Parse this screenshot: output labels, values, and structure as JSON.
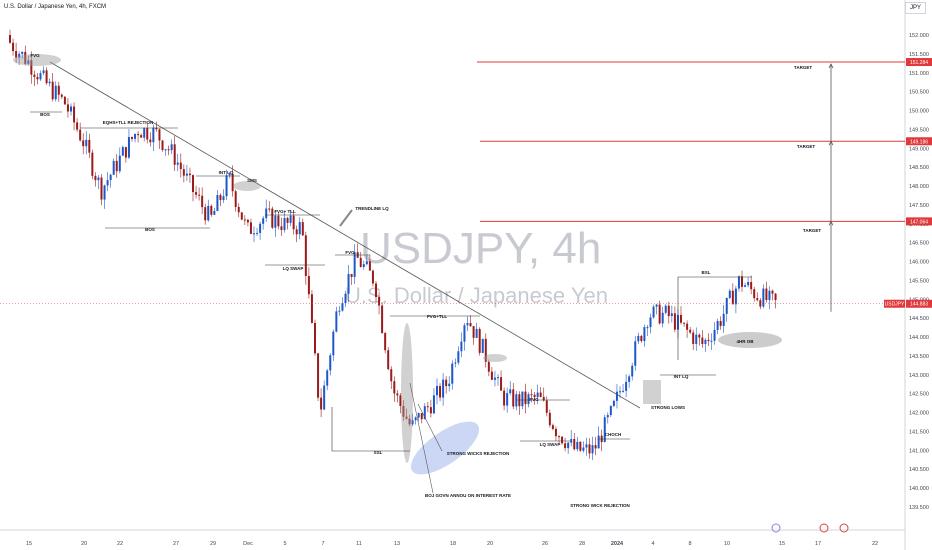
{
  "header": {
    "title": "U.S. Dollar / Japanese Yen, 4h, FXCM",
    "currency": "JPY"
  },
  "watermark": {
    "symbol_tf": "USDJPY, 4h",
    "name": "U.S. Dollar / Japanese Yen"
  },
  "price_axis": {
    "ticks": [
      "152.000",
      "151.500",
      "151.000",
      "150.500",
      "150.000",
      "149.500",
      "149.000",
      "148.500",
      "148.000",
      "147.500",
      "147.000",
      "146.500",
      "146.000",
      "145.500",
      "145.000",
      "144.500",
      "144.000",
      "143.500",
      "143.000",
      "142.500",
      "142.000",
      "141.500",
      "141.000",
      "140.500",
      "140.000",
      "139.500"
    ],
    "current_label": "USDJPY",
    "current_value": "144.883",
    "target_values": [
      "151.284",
      "149.186",
      "147.064"
    ]
  },
  "time_axis": {
    "ticks": [
      "15",
      "20",
      "22",
      "27",
      "29",
      "Dec",
      "5",
      "7",
      "11",
      "13",
      "18",
      "20",
      "26",
      "28",
      "2024",
      "4",
      "8",
      "10",
      "15",
      "17",
      "22"
    ]
  },
  "annotations": {
    "labels": [
      "FVG",
      "BOS",
      "EQHS+TLL REJECTION",
      "INT LQ",
      "SMS",
      "BOS",
      "FVG+ TLL",
      "TRENDLINE LQ",
      "LQ SWAP",
      "FVG",
      "FVG+TLL",
      "SSL",
      "STRONG WICKS REJECTION",
      "BOJ GOVN ANNOU ON INTEREST RATE",
      "FVG",
      "LQ SWAP",
      "CHOCH",
      "STRONG WICK REJECTION",
      "STRONG LOWS",
      "INT LQ",
      "BSL",
      "4HR OB",
      "TARGET",
      "TARGET",
      "TARGET"
    ]
  },
  "colors": {
    "up_candle": "#1e57c9",
    "down_candle": "#9b1b1b",
    "target_line": "#e0383b",
    "trend_line": "#555555",
    "price_tag_bg": "#e0383b"
  },
  "chart_data": {
    "type": "candlestick",
    "title": "U.S. Dollar / Japanese Yen, 4h, FXCM",
    "ylim": [
      139.5,
      152.25
    ],
    "y_ticks": [
      152.0,
      151.5,
      151.0,
      150.5,
      150.0,
      149.5,
      149.0,
      148.5,
      148.0,
      147.5,
      147.0,
      146.5,
      146.0,
      145.5,
      145.0,
      144.5,
      144.0,
      143.5,
      143.0,
      142.5,
      142.0,
      141.5,
      141.0,
      140.5,
      140.0,
      139.5
    ],
    "x_ticks": [
      "15",
      "20",
      "22",
      "27",
      "29",
      "Dec",
      "5",
      "7",
      "11",
      "13",
      "18",
      "20",
      "26",
      "28",
      "2024",
      "4",
      "8",
      "10",
      "15",
      "17",
      "22"
    ],
    "price_path": [
      {
        "date": "Nov 14",
        "close": 151.8
      },
      {
        "date": "Nov 15",
        "close": 151.3
      },
      {
        "date": "Nov 16",
        "close": 150.7
      },
      {
        "date": "Nov 17",
        "close": 150.2
      },
      {
        "date": "Nov 20",
        "close": 149.2
      },
      {
        "date": "Nov 21",
        "close": 147.9
      },
      {
        "date": "Nov 22",
        "close": 148.7
      },
      {
        "date": "Nov 23",
        "close": 149.5
      },
      {
        "date": "Nov 24",
        "close": 149.4
      },
      {
        "date": "Nov 27",
        "close": 148.8
      },
      {
        "date": "Nov 28",
        "close": 147.9
      },
      {
        "date": "Nov 29",
        "close": 147.1
      },
      {
        "date": "Nov 30",
        "close": 148.2
      },
      {
        "date": "Dec 1",
        "close": 146.8
      },
      {
        "date": "Dec 4",
        "close": 147.2
      },
      {
        "date": "Dec 5",
        "close": 147.0
      },
      {
        "date": "Dec 6",
        "close": 146.9
      },
      {
        "date": "Dec 7",
        "close": 142.0
      },
      {
        "date": "Dec 8",
        "close": 144.9
      },
      {
        "date": "Dec 11",
        "close": 146.1
      },
      {
        "date": "Dec 12",
        "close": 145.5
      },
      {
        "date": "Dec 13",
        "close": 142.6
      },
      {
        "date": "Dec 14",
        "close": 141.6
      },
      {
        "date": "Dec 15",
        "close": 142.2
      },
      {
        "date": "Dec 18",
        "close": 142.8
      },
      {
        "date": "Dec 19",
        "close": 144.6
      },
      {
        "date": "Dec 20",
        "close": 143.6
      },
      {
        "date": "Dec 21",
        "close": 142.4
      },
      {
        "date": "Dec 22",
        "close": 142.3
      },
      {
        "date": "Dec 26",
        "close": 142.4
      },
      {
        "date": "Dec 27",
        "close": 141.5
      },
      {
        "date": "Dec 28",
        "close": 141.0
      },
      {
        "date": "Dec 29",
        "close": 141.0
      },
      {
        "date": "Jan 2",
        "close": 142.0
      },
      {
        "date": "Jan 3",
        "close": 143.3
      },
      {
        "date": "Jan 4",
        "close": 144.6
      },
      {
        "date": "Jan 5",
        "close": 144.6
      },
      {
        "date": "Jan 8",
        "close": 144.2
      },
      {
        "date": "Jan 9",
        "close": 143.8
      },
      {
        "date": "Jan 10",
        "close": 144.5
      },
      {
        "date": "Jan 11",
        "close": 145.5
      },
      {
        "date": "Jan 12",
        "close": 145.1
      },
      {
        "date": "Jan 14",
        "close": 144.88
      }
    ],
    "targets": [
      151.284,
      149.186,
      147.064
    ],
    "current_price": 144.883,
    "grid": false,
    "legend": "none"
  }
}
